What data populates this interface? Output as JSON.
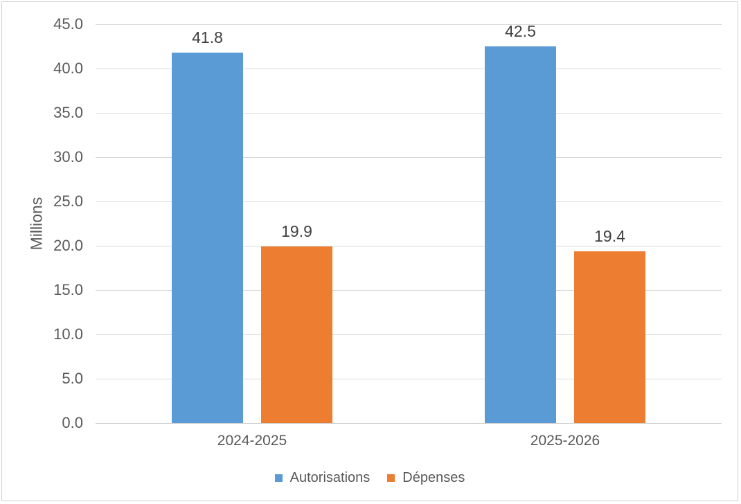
{
  "chart_data": {
    "type": "bar",
    "title": "",
    "xlabel": "",
    "ylabel": "Millions",
    "categories": [
      "2024-2025",
      "2025-2026"
    ],
    "series": [
      {
        "name": "Autorisations",
        "color": "#5B9BD5",
        "values": [
          41.8,
          42.5
        ]
      },
      {
        "name": "Dépenses",
        "color": "#ED7D31",
        "values": [
          19.9,
          19.4
        ]
      }
    ],
    "ylim": [
      0,
      45
    ],
    "ytick_step": 5,
    "yticks": [
      "45.0",
      "40.0",
      "35.0",
      "30.0",
      "25.0",
      "20.0",
      "15.0",
      "10.0",
      "5.0",
      "0.0"
    ],
    "data_labels": [
      "41.8",
      "19.9",
      "42.5",
      "19.4"
    ],
    "grid": true,
    "legend_position": "bottom"
  },
  "colors": {
    "grid": "#D9D9D9",
    "axis_line": "#C9C9C9",
    "tick_text": "#595959",
    "data_label_text": "#404040",
    "frame_border": "#CFCFCF",
    "series_blue": "#5B9BD5",
    "series_orange": "#ED7D31"
  }
}
